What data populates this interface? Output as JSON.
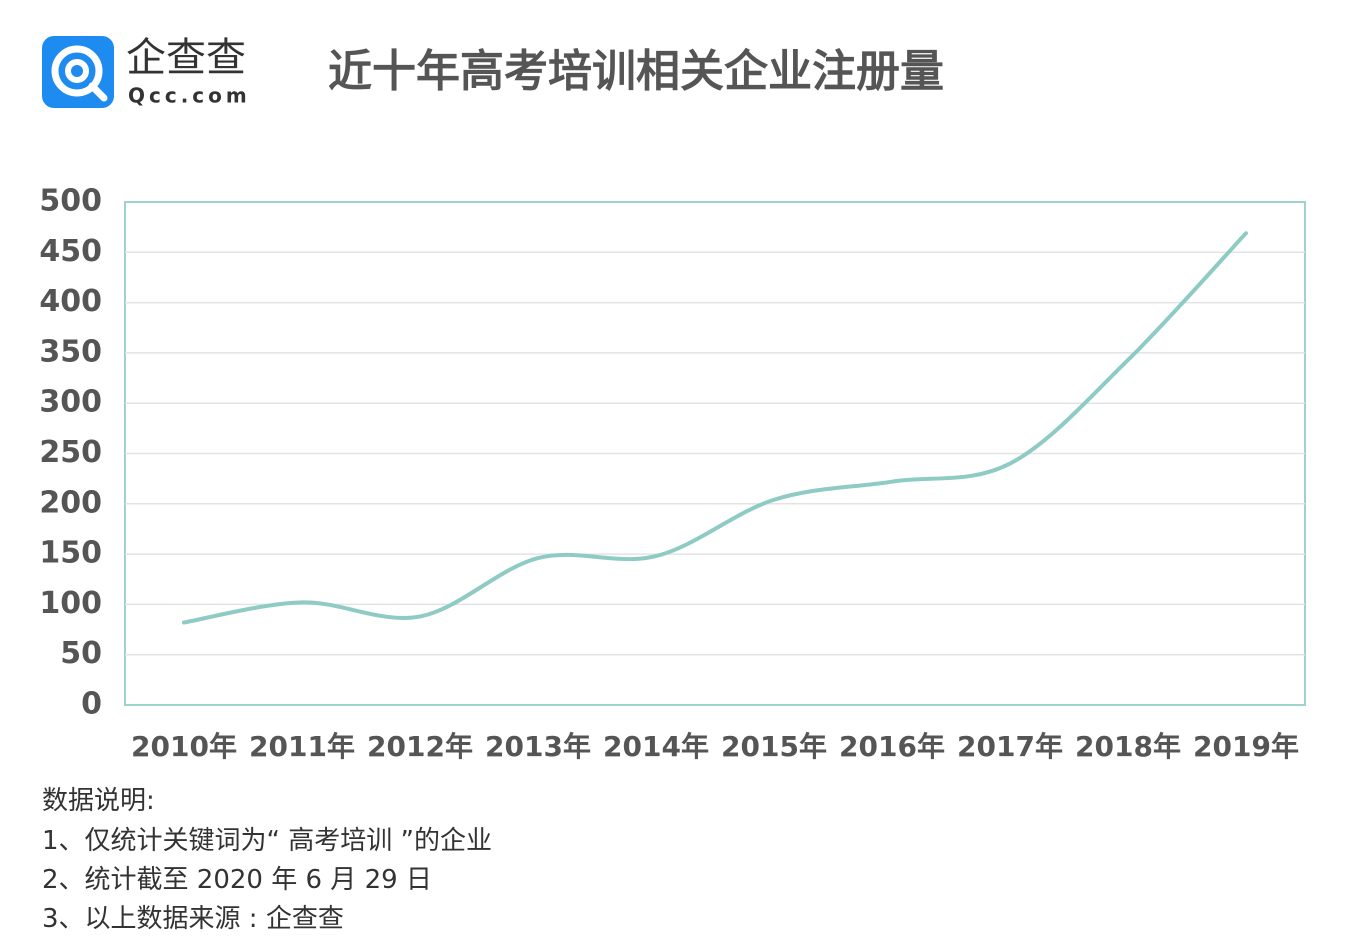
{
  "logo": {
    "name": "企查查",
    "site": "Qcc.com"
  },
  "chart_data": {
    "type": "line",
    "title": "近十年高考培训相关企业注册量",
    "categories": [
      "2010年",
      "2011年",
      "2012年",
      "2013年",
      "2014年",
      "2015年",
      "2016年",
      "2017年",
      "2018年",
      "2019年"
    ],
    "series": [
      {
        "name": "注册量",
        "color": "#8ecbc4",
        "values": [
          82,
          102,
          88,
          146,
          148,
          204,
          222,
          240,
          343,
          469
        ]
      }
    ],
    "ylim": [
      0,
      500
    ],
    "yticks": [
      0,
      50,
      100,
      150,
      200,
      250,
      300,
      350,
      400,
      450,
      500
    ],
    "grid": true,
    "smooth": true
  },
  "notes": {
    "heading": "数据说明:",
    "items": [
      "1、仅统计关键词为“ 高考培训 ”的企业",
      "2、统计截至 2020 年 6 月 29 日",
      "3、以上数据来源 : 企查查"
    ]
  }
}
